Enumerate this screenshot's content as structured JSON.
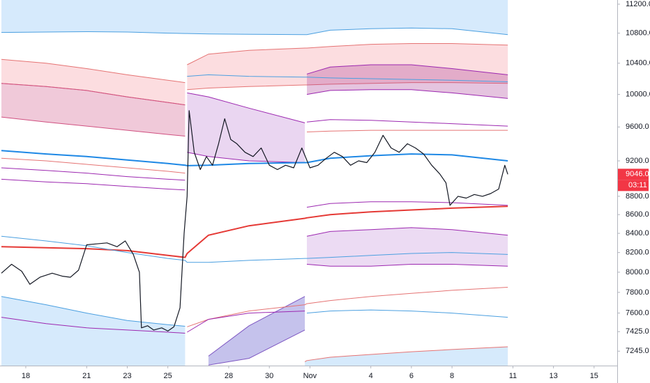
{
  "chart_data": {
    "type": "line",
    "log_scale": true,
    "grid": false,
    "xlim": [
      16.73,
      47.14
    ],
    "ylim": [
      7115,
      11259
    ],
    "xticks": [
      18,
      21,
      23,
      25,
      28,
      30,
      {
        "value": 32,
        "label": "Nov"
      },
      {
        "value": 35,
        "label": "4"
      },
      {
        "value": 37,
        "label": "6"
      },
      {
        "value": 39,
        "label": "8"
      },
      {
        "value": 42,
        "label": "11"
      },
      {
        "value": 44,
        "label": "13"
      },
      {
        "value": 46,
        "label": "15"
      }
    ],
    "yticks": [
      {
        "value": 11200,
        "label": "11200.0"
      },
      {
        "value": 10800,
        "label": "10800.0"
      },
      {
        "value": 10400,
        "label": "10400.0"
      },
      {
        "value": 10000,
        "label": "10000.0"
      },
      {
        "value": 9600,
        "label": "9600.0"
      },
      {
        "value": 9200,
        "label": "9200.0"
      },
      {
        "value": 8800,
        "label": "8800.0"
      },
      {
        "value": 8600,
        "label": "8600.0"
      },
      {
        "value": 8400,
        "label": "8400.0"
      },
      {
        "value": 8200,
        "label": "8200.0"
      },
      {
        "value": 8000,
        "label": "8000.0"
      },
      {
        "value": 7800,
        "label": "7800.0"
      },
      {
        "value": 7600,
        "label": "7600.0"
      },
      {
        "value": 7425,
        "label": "7425.0"
      },
      {
        "value": 7245,
        "label": "7245.0"
      }
    ],
    "x": [
      16.8,
      19,
      21,
      23,
      25,
      25.85,
      25.95,
      27,
      29,
      31.75,
      31.85,
      33,
      35,
      37,
      39,
      41.75
    ],
    "fills": [
      {
        "side": "above",
        "color": "#d6eafc",
        "edge": "#4a9fe0",
        "values": [
          10810,
          10815,
          10820,
          10815,
          10800,
          10795,
          10795,
          10790,
          10785,
          10780,
          10780,
          10840,
          10860,
          10870,
          10860,
          10780
        ]
      },
      {
        "side": "below",
        "color": "#d6eafc",
        "edge": "#4a9fe0",
        "values": [
          7760,
          7680,
          7600,
          7530,
          7490,
          7475,
          null,
          null,
          null,
          null,
          null,
          null,
          null,
          null,
          null,
          null
        ]
      },
      {
        "side": "below",
        "color": "#d6eafc",
        "edge": "#e57373",
        "values": [
          null,
          null,
          null,
          null,
          null,
          null,
          null,
          null,
          null,
          7150,
          7160,
          7190,
          7215,
          7240,
          7260,
          7285
        ]
      }
    ],
    "bands": [
      {
        "fill": "rgba(242,120,130,0.25)",
        "edge": "#e57373",
        "upper": [
          10450,
          10400,
          10330,
          10250,
          10180,
          10150,
          null,
          null,
          null,
          null,
          null,
          null,
          null,
          null,
          null,
          null
        ],
        "lower": [
          10140,
          10100,
          10050,
          9970,
          9900,
          9870,
          null,
          null,
          null,
          null,
          null,
          null,
          null,
          null,
          null,
          null
        ]
      },
      {
        "fill": "rgba(200,60,120,0.28)",
        "edge": "#d05080",
        "upper": [
          10140,
          10100,
          10050,
          9970,
          9900,
          9870,
          null,
          null,
          null,
          null,
          null,
          null,
          null,
          null,
          null,
          null
        ],
        "lower": [
          9720,
          9660,
          9610,
          9560,
          9510,
          9490,
          null,
          null,
          null,
          null,
          null,
          null,
          null,
          null,
          null,
          null
        ]
      },
      {
        "fill": "rgba(242,120,130,0.25)",
        "edge": "#e57373",
        "upper": [
          null,
          null,
          null,
          null,
          null,
          null,
          10380,
          10520,
          10570,
          10600,
          10600,
          10620,
          10650,
          10660,
          10660,
          10640
        ],
        "lower": [
          null,
          null,
          null,
          null,
          null,
          null,
          10060,
          10080,
          10100,
          10120,
          10120,
          10130,
          10140,
          10150,
          10150,
          10140
        ]
      },
      {
        "fill": "rgba(170,90,200,0.25)",
        "edge": "#9c27b0",
        "upper": [
          null,
          null,
          null,
          null,
          null,
          null,
          10020,
          9970,
          9830,
          9650,
          null,
          null,
          null,
          null,
          null,
          null
        ],
        "lower": [
          null,
          null,
          null,
          null,
          null,
          null,
          9300,
          9250,
          9200,
          9180,
          null,
          null,
          null,
          null,
          null,
          null
        ]
      },
      {
        "fill": "rgba(170,60,150,0.3)",
        "edge": "#9c27b0",
        "upper": [
          null,
          null,
          null,
          null,
          null,
          null,
          null,
          null,
          null,
          null,
          10260,
          10350,
          10380,
          10380,
          10330,
          10250
        ],
        "lower": [
          null,
          null,
          null,
          null,
          null,
          null,
          null,
          null,
          null,
          null,
          10000,
          10050,
          10060,
          10060,
          10020,
          9950
        ]
      },
      {
        "fill": "rgba(170,90,200,0.22)",
        "edge": "#9c27b0",
        "upper": [
          null,
          null,
          null,
          null,
          null,
          null,
          null,
          null,
          null,
          null,
          8370,
          8420,
          8440,
          8460,
          8440,
          8380
        ],
        "lower": [
          null,
          null,
          null,
          null,
          null,
          null,
          null,
          null,
          null,
          null,
          8080,
          8060,
          8060,
          8080,
          8080,
          8060
        ]
      },
      {
        "fill": "rgba(90,80,200,0.35)",
        "edge": "#7e57c2",
        "upper": [
          null,
          null,
          null,
          null,
          null,
          null,
          null,
          7200,
          7480,
          7760,
          null,
          null,
          null,
          null,
          null,
          null
        ],
        "lower": [
          null,
          null,
          null,
          null,
          null,
          null,
          null,
          7120,
          7180,
          7440,
          null,
          null,
          null,
          null,
          null,
          null
        ]
      }
    ],
    "series": [
      {
        "color": "#e53935",
        "width": 2,
        "values": [
          8260,
          8250,
          8240,
          8220,
          8170,
          8150,
          8190,
          8380,
          8480,
          8560,
          8565,
          8600,
          8630,
          8650,
          8670,
          8690
        ]
      },
      {
        "color": "#1e88e5",
        "width": 2,
        "values": [
          9320,
          9280,
          9250,
          9210,
          9170,
          9150,
          9145,
          9150,
          9170,
          9180,
          9180,
          9230,
          9260,
          9280,
          9270,
          9200
        ]
      },
      {
        "color": "#e57373",
        "width": 1,
        "values": [
          9230,
          9200,
          9160,
          9120,
          9080,
          9060,
          null,
          null,
          null,
          null,
          null,
          null,
          null,
          null,
          null,
          null
        ]
      },
      {
        "color": "#9c27b0",
        "width": 1,
        "values": [
          9120,
          9090,
          9060,
          9020,
          8990,
          8980,
          null,
          null,
          null,
          null,
          null,
          null,
          null,
          null,
          null,
          null
        ]
      },
      {
        "color": "#9c27b0",
        "width": 1,
        "values": [
          8990,
          8960,
          8940,
          8910,
          8880,
          8870,
          null,
          null,
          null,
          null,
          null,
          null,
          null,
          null,
          null,
          null
        ]
      },
      {
        "color": "#4a9fe0",
        "width": 1,
        "values": [
          8370,
          8320,
          8270,
          8200,
          8140,
          8120,
          8100,
          8100,
          8120,
          8140,
          8140,
          8150,
          8170,
          8190,
          8200,
          8180
        ]
      },
      {
        "color": "#e57373",
        "width": 1,
        "values": [
          null,
          null,
          null,
          null,
          null,
          null,
          7470,
          7540,
          7620,
          7680,
          7690,
          7720,
          7760,
          7790,
          7820,
          7850
        ]
      },
      {
        "color": "#9c27b0",
        "width": 1,
        "values": [
          null,
          null,
          null,
          null,
          null,
          null,
          7420,
          7540,
          7600,
          7620,
          null,
          null,
          null,
          null,
          null,
          null
        ]
      },
      {
        "color": "#4a9fe0",
        "width": 1,
        "values": [
          null,
          null,
          null,
          null,
          null,
          null,
          10230,
          10250,
          10230,
          10220,
          10220,
          10210,
          10200,
          10190,
          10180,
          10160
        ]
      },
      {
        "color": "#e57373",
        "width": 1,
        "values": [
          null,
          null,
          null,
          null,
          null,
          null,
          null,
          null,
          null,
          null,
          9540,
          9550,
          9560,
          9560,
          9560,
          9560
        ]
      },
      {
        "color": "#9c27b0",
        "width": 1,
        "values": [
          null,
          null,
          null,
          null,
          null,
          null,
          null,
          null,
          null,
          null,
          9660,
          9690,
          9680,
          9660,
          9640,
          9610
        ]
      },
      {
        "color": "#9c27b0",
        "width": 1,
        "values": [
          null,
          null,
          null,
          null,
          null,
          null,
          null,
          null,
          null,
          null,
          8680,
          8720,
          8740,
          8740,
          8730,
          8700
        ]
      },
      {
        "color": "#4a9fe0",
        "width": 1,
        "values": [
          null,
          null,
          null,
          null,
          null,
          null,
          null,
          null,
          null,
          null,
          7600,
          7620,
          7630,
          7620,
          7600,
          7560
        ]
      },
      {
        "color": "#9c27b0",
        "width": 1,
        "values": [
          7560,
          7500,
          7460,
          7440,
          7420,
          7410,
          null,
          null,
          null,
          null,
          null,
          null,
          null,
          null,
          null,
          null
        ]
      }
    ],
    "price": {
      "color": "#131722",
      "x": [
        16.8,
        17.3,
        17.8,
        18.2,
        18.7,
        19.3,
        19.8,
        20.2,
        20.6,
        21.0,
        21.5,
        22.0,
        22.5,
        22.9,
        23.3,
        23.6,
        23.7,
        24.0,
        24.3,
        24.7,
        25.0,
        25.3,
        25.6,
        25.8,
        25.95,
        26.05,
        26.3,
        26.6,
        26.9,
        27.2,
        27.5,
        27.8,
        28.1,
        28.4,
        28.8,
        29.2,
        29.6,
        30.0,
        30.4,
        30.8,
        31.2,
        31.6,
        32.0,
        32.4,
        32.8,
        33.2,
        33.6,
        34.0,
        34.4,
        34.8,
        35.2,
        35.6,
        36.0,
        36.4,
        36.8,
        37.2,
        37.6,
        38.0,
        38.4,
        38.7,
        38.9,
        39.3,
        39.7,
        40.1,
        40.5,
        40.9,
        41.3,
        41.6,
        41.75
      ],
      "values": [
        7990,
        8080,
        8010,
        7880,
        7950,
        7990,
        7960,
        7950,
        8020,
        8280,
        8290,
        8300,
        8260,
        8320,
        8180,
        8000,
        7460,
        7480,
        7440,
        7460,
        7430,
        7470,
        7650,
        8400,
        8800,
        9800,
        9300,
        9100,
        9250,
        9150,
        9400,
        9700,
        9450,
        9400,
        9300,
        9250,
        9350,
        9150,
        9100,
        9150,
        9120,
        9350,
        9120,
        9150,
        9230,
        9300,
        9250,
        9150,
        9200,
        9180,
        9300,
        9500,
        9350,
        9300,
        9400,
        9350,
        9280,
        9150,
        9050,
        8950,
        8700,
        8800,
        8780,
        8820,
        8800,
        8830,
        8880,
        9150,
        9046
      ]
    },
    "last_price": {
      "value": 9046,
      "label": "9046.0",
      "color": "#f23645"
    },
    "countdown": "03:11"
  }
}
